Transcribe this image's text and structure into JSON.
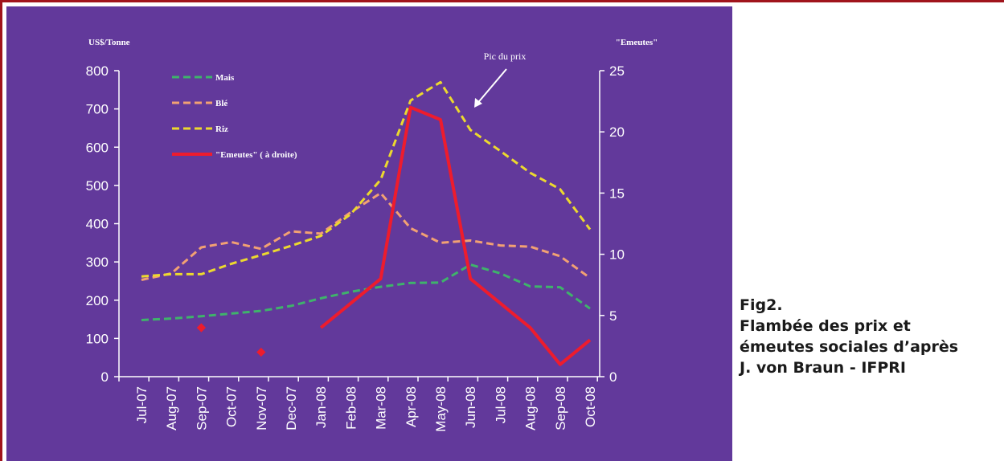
{
  "chart_data": {
    "type": "line",
    "left_axis_unit": "US$/Tonne",
    "right_axis_unit": "\"Emeutes\"",
    "categories": [
      "Jul-07",
      "Aug-07",
      "Sep-07",
      "Oct-07",
      "Nov-07",
      "Dec-07",
      "Jan-08",
      "Feb-08",
      "Mar-08",
      "Apr-08",
      "May-08",
      "Jun-08",
      "Jul-08",
      "Aug-08",
      "Sep-08",
      "Oct-08"
    ],
    "y_left_ticks": [
      "0",
      "100",
      "200",
      "300",
      "400",
      "500",
      "600",
      "700",
      "800"
    ],
    "y_right_ticks": [
      "0",
      "5",
      "10",
      "15",
      "20",
      "25"
    ],
    "ylim_left": [
      0,
      800
    ],
    "ylim_right": [
      0,
      25
    ],
    "series": [
      {
        "name": "Mais",
        "axis": "left",
        "style": "dashed",
        "color": "#3fb36b",
        "values": [
          148,
          152,
          158,
          165,
          172,
          185,
          205,
          222,
          235,
          245,
          246,
          293,
          270,
          236,
          234,
          178
        ]
      },
      {
        "name": "Blé",
        "axis": "left",
        "style": "dashed",
        "color": "#f2a173",
        "values": [
          253,
          270,
          338,
          352,
          334,
          380,
          374,
          430,
          480,
          388,
          350,
          356,
          343,
          340,
          315,
          258
        ]
      },
      {
        "name": "Riz",
        "axis": "left",
        "style": "dashed",
        "color": "#ecd92e",
        "values": [
          262,
          268,
          268,
          295,
          318,
          342,
          368,
          425,
          515,
          722,
          770,
          645,
          590,
          533,
          490,
          385
        ]
      },
      {
        "name": "\"Emeutes\" ( à droite)",
        "axis": "right",
        "style": "solid",
        "color": "#ee1c2d",
        "values": [
          null,
          null,
          4,
          null,
          2,
          null,
          4,
          6,
          8,
          22,
          21,
          8,
          6,
          4,
          1,
          3
        ],
        "line_start_index": 6,
        "isolated_points": [
          2,
          4
        ]
      }
    ],
    "annotation": "Pic du prix",
    "legend_position": "top-left",
    "grid": false
  },
  "caption": {
    "line1": "Fig2.",
    "line2": "Flambée des prix et",
    "line3": "émeutes sociales d’après",
    "line4": "J. von Braun - IFPRI"
  },
  "colors": {
    "plot_background": "#62399b",
    "frame": "#a0141c",
    "axis": "#ffffff"
  }
}
